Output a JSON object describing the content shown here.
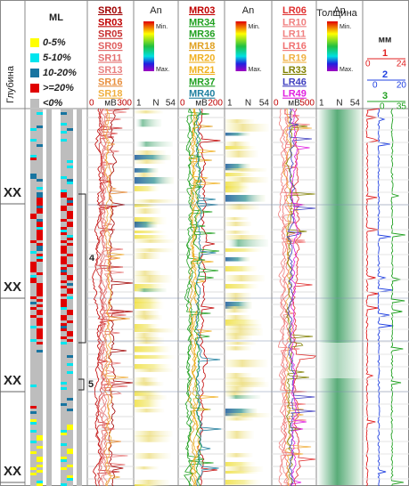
{
  "depth": {
    "title": "Глубина",
    "labels": [
      "XX",
      "XX",
      "XX",
      "XX"
    ]
  },
  "ml": {
    "title": "ML",
    "legend": [
      {
        "label": "0-5%",
        "color": "#ffff00"
      },
      {
        "label": "5-10%",
        "color": "#00e5ee"
      },
      {
        "label": "10-20%",
        "color": "#1874a0"
      },
      {
        "label": ">=20%",
        "color": "#e00000"
      },
      {
        "label": "<0%",
        "color": "#bdbdbd"
      }
    ]
  },
  "annotations": [
    "4",
    "5"
  ],
  "tracks": [
    {
      "names": [
        "SR01",
        "SR03",
        "SR05",
        "SR09",
        "SR11",
        "SR13",
        "SR16",
        "SR18"
      ],
      "colors": [
        "#a00000",
        "#c00000",
        "#c83030",
        "#e06060",
        "#e47070",
        "#e88080",
        "#e89040",
        "#f0b040"
      ],
      "scale": {
        "min": "0",
        "unit": "мВ",
        "max": "300"
      }
    },
    {
      "names": [
        "MR03",
        "MR34",
        "MR36",
        "MR18",
        "MR20",
        "MR21",
        "MR37",
        "MR40"
      ],
      "colors": [
        "#c00000",
        "#20a020",
        "#20a020",
        "#e0a020",
        "#f0b020",
        "#f0b020",
        "#20a020",
        "#2080a0"
      ],
      "scale": {
        "min": "0",
        "unit": "мВ",
        "max": "200"
      }
    },
    {
      "names": [
        "LR06",
        "LR10",
        "LR11",
        "LR16",
        "LR19",
        "LR33",
        "LR46",
        "LR49"
      ],
      "colors": [
        "#e03030",
        "#f08080",
        "#f08080",
        "#f07070",
        "#f0b040",
        "#808000",
        "#4040c0",
        "#e020e0"
      ],
      "scale": {
        "min": "0",
        "unit": "мВ",
        "max": "500"
      }
    }
  ],
  "spectra": [
    {
      "title": "An",
      "min_label": "Min.",
      "max_label": "Max.",
      "scale": {
        "min": "1",
        "unit": "N",
        "max": "54"
      }
    },
    {
      "title": "An",
      "min_label": "Min.",
      "max_label": "Max.",
      "scale": {
        "min": "1",
        "unit": "N",
        "max": "54"
      }
    },
    {
      "title": "An",
      "min_label": "Min.",
      "max_label": "Max.",
      "scale": {
        "min": "1",
        "unit": "N",
        "max": "54"
      }
    }
  ],
  "thickness": {
    "title": "Толщина",
    "unit": "мм",
    "curves": [
      {
        "name": "1",
        "min": "0",
        "max": "24",
        "color": "#e02020"
      },
      {
        "name": "2",
        "min": "0",
        "max": "20",
        "color": "#2040e0"
      },
      {
        "name": "3",
        "min": "0",
        "max": "35",
        "color": "#20a020"
      }
    ]
  }
}
